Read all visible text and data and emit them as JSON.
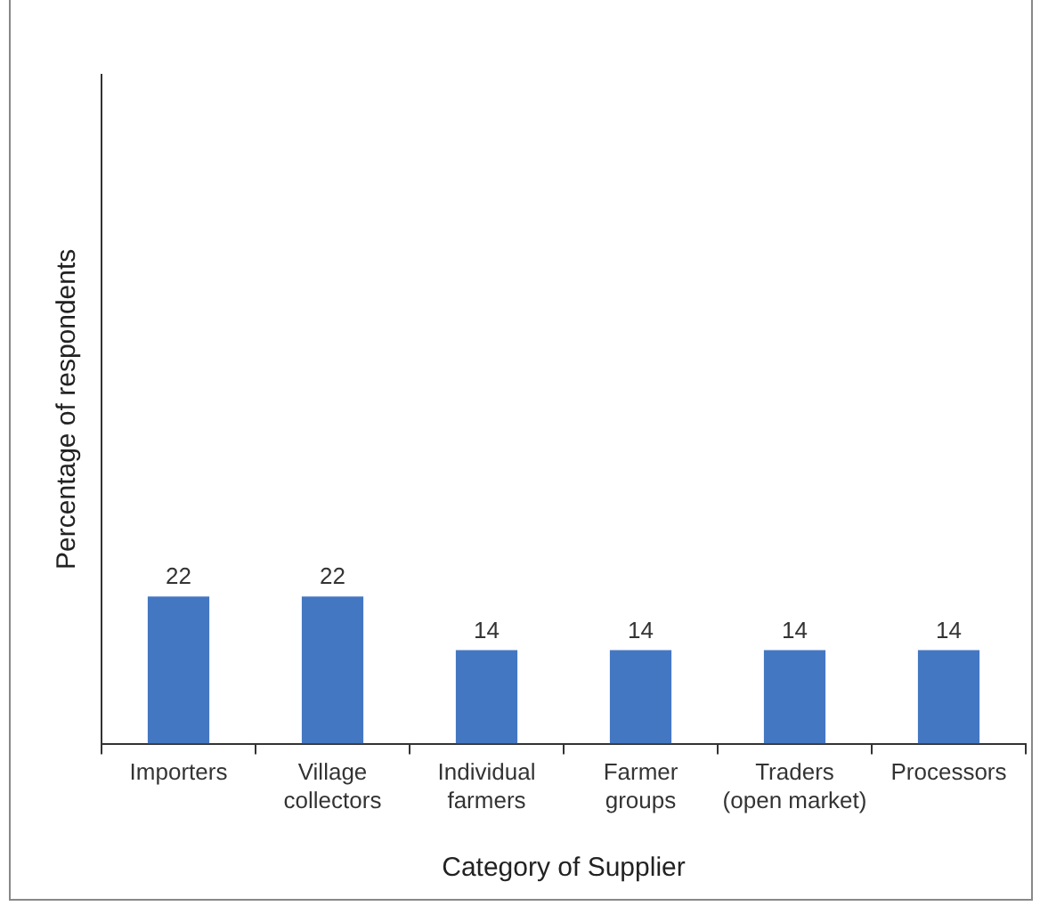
{
  "chart_data": {
    "type": "bar",
    "xlabel": "Category of Supplier",
    "ylabel": "Percentage of respondents",
    "categories": [
      "Importers",
      "Village collectors",
      "Individual farmers",
      "Farmer groups",
      "Traders (open market)",
      "Processors"
    ],
    "values": [
      22,
      22,
      14,
      14,
      14,
      14
    ],
    "color": "#4477c2",
    "ylim": [
      0,
      100
    ],
    "tick_labels": "x",
    "grid": false,
    "legend": false,
    "data_labels": true
  }
}
